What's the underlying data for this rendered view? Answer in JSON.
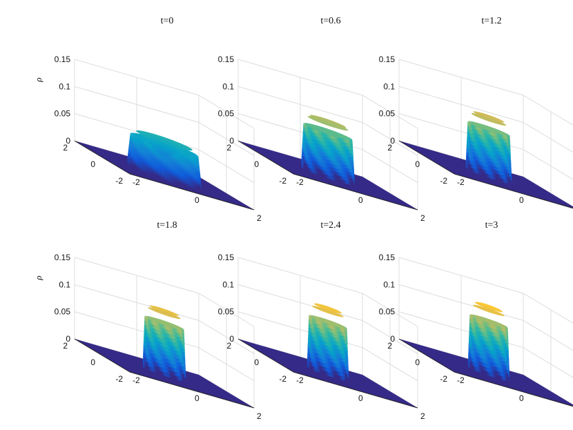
{
  "chart_data": {
    "type": "surface",
    "ylabel": "ρ",
    "zlim": [
      0,
      0.15
    ],
    "xlim": [
      -2,
      2
    ],
    "ylim": [
      -2,
      2
    ],
    "grid": true,
    "z_ticks": [
      "0.15",
      "0.1",
      "0.05",
      "0"
    ],
    "x_ticks": [
      "-2",
      "0",
      "2"
    ],
    "y_ticks": [
      "-2",
      "0",
      "2"
    ],
    "colormap": [
      "#352a87",
      "#0f5cdd",
      "#1481d6",
      "#06a4ca",
      "#2eb7a4",
      "#87bf77",
      "#d1bb59",
      "#fec832",
      "#f9fb0e"
    ],
    "panels": [
      {
        "title": "t=0",
        "shows_ylabel": true,
        "profile": {
          "radius": 1.0,
          "peak": 0.08,
          "rim_dip": 0.045,
          "edge_width": 0.14
        }
      },
      {
        "title": "t=0.6",
        "shows_ylabel": false,
        "profile": {
          "radius": 0.72,
          "peak": 0.105,
          "rim_dip": 0.012,
          "edge_width": 0.1
        }
      },
      {
        "title": "t=1.2",
        "shows_ylabel": false,
        "profile": {
          "radius": 0.62,
          "peak": 0.113,
          "rim_dip": 0.01,
          "edge_width": 0.09
        }
      },
      {
        "title": "t=1.8",
        "shows_ylabel": true,
        "profile": {
          "radius": 0.58,
          "peak": 0.12,
          "rim_dip": 0.008,
          "edge_width": 0.08
        }
      },
      {
        "title": "t=2.4",
        "shows_ylabel": false,
        "profile": {
          "radius": 0.56,
          "peak": 0.123,
          "rim_dip": 0.004,
          "edge_width": 0.08
        }
      },
      {
        "title": "t=3",
        "shows_ylabel": false,
        "profile": {
          "radius": 0.56,
          "peak": 0.124,
          "rim_dip": 0.0,
          "edge_width": 0.08
        }
      }
    ]
  }
}
